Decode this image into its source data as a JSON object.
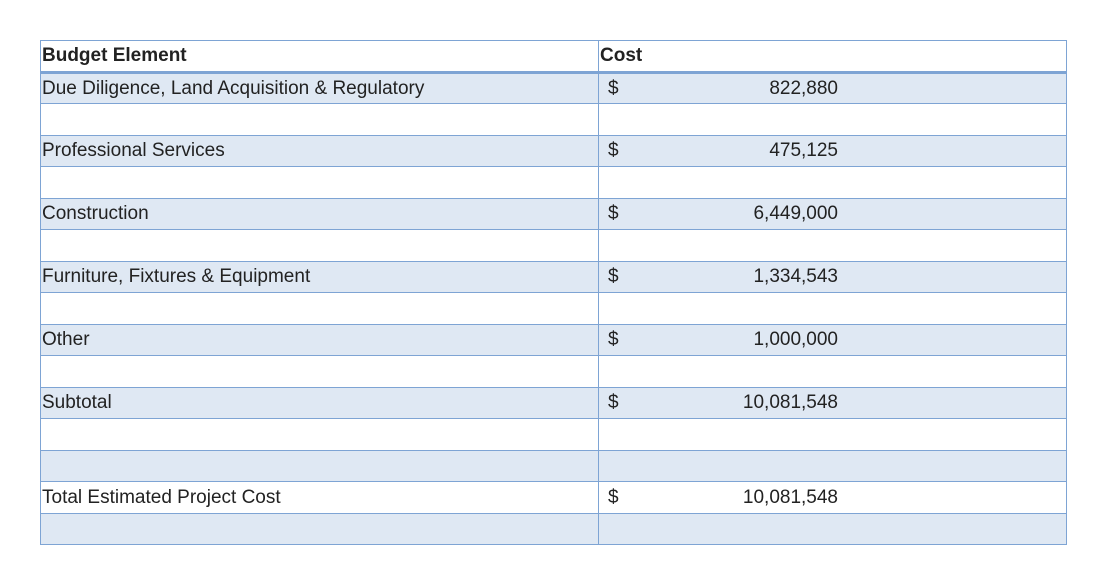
{
  "table": {
    "header": {
      "label": "Budget Element",
      "cost": "Cost"
    },
    "currency_symbol": "$",
    "rows": [
      {
        "label": "Due Diligence, Land Acquisition & Regulatory",
        "amount": "822,880"
      },
      {
        "label": "Professional Services",
        "amount": "475,125"
      },
      {
        "label": "Construction",
        "amount": "6,449,000"
      },
      {
        "label": "Furniture, Fixtures & Equipment",
        "amount": "1,334,543"
      },
      {
        "label": "Other",
        "amount": "1,000,000"
      },
      {
        "label": "Subtotal",
        "amount": "10,081,548"
      },
      {
        "label": "Total Estimated Project Cost",
        "amount": "10,081,548"
      }
    ],
    "colors": {
      "border": "#7ea4d4",
      "shaded_row": "#dfe8f3",
      "plain_row": "#ffffff"
    }
  }
}
